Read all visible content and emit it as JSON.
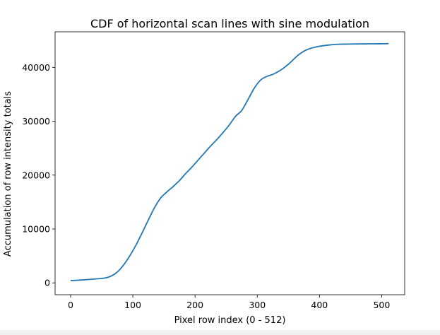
{
  "chart_data": {
    "type": "line",
    "title": "CDF of horizontal scan lines with sine modulation",
    "xlabel": "Pixel row index (0 - 512)",
    "ylabel": "Accumulation of row intensity totals",
    "xlim": [
      -25,
      537
    ],
    "ylim": [
      -2200,
      46600
    ],
    "xticks": [
      0,
      100,
      200,
      300,
      400,
      500
    ],
    "yticks": [
      0,
      10000,
      20000,
      30000,
      40000
    ],
    "grid": false,
    "line_color": "#1f77b4",
    "series": [
      {
        "x": [
          0,
          20,
          40,
          55,
          65,
          75,
          85,
          95,
          105,
          115,
          125,
          135,
          145,
          155,
          165,
          175,
          185,
          195,
          205,
          215,
          225,
          235,
          245,
          255,
          265,
          275,
          285,
          295,
          305,
          315,
          325,
          335,
          345,
          355,
          365,
          375,
          385,
          395,
          405,
          415,
          425,
          435,
          445,
          455,
          465,
          475,
          485,
          495,
          511
        ],
        "y": [
          420,
          550,
          730,
          900,
          1250,
          2000,
          3300,
          5000,
          7000,
          9300,
          11700,
          14000,
          15800,
          16900,
          17900,
          19000,
          20300,
          21500,
          22800,
          24100,
          25400,
          26600,
          27900,
          29300,
          30900,
          32000,
          34000,
          36100,
          37600,
          38300,
          38700,
          39300,
          40100,
          41100,
          42200,
          43000,
          43500,
          43800,
          44000,
          44150,
          44250,
          44300,
          44320,
          44340,
          44350,
          44360,
          44370,
          44380,
          44400
        ]
      }
    ]
  }
}
